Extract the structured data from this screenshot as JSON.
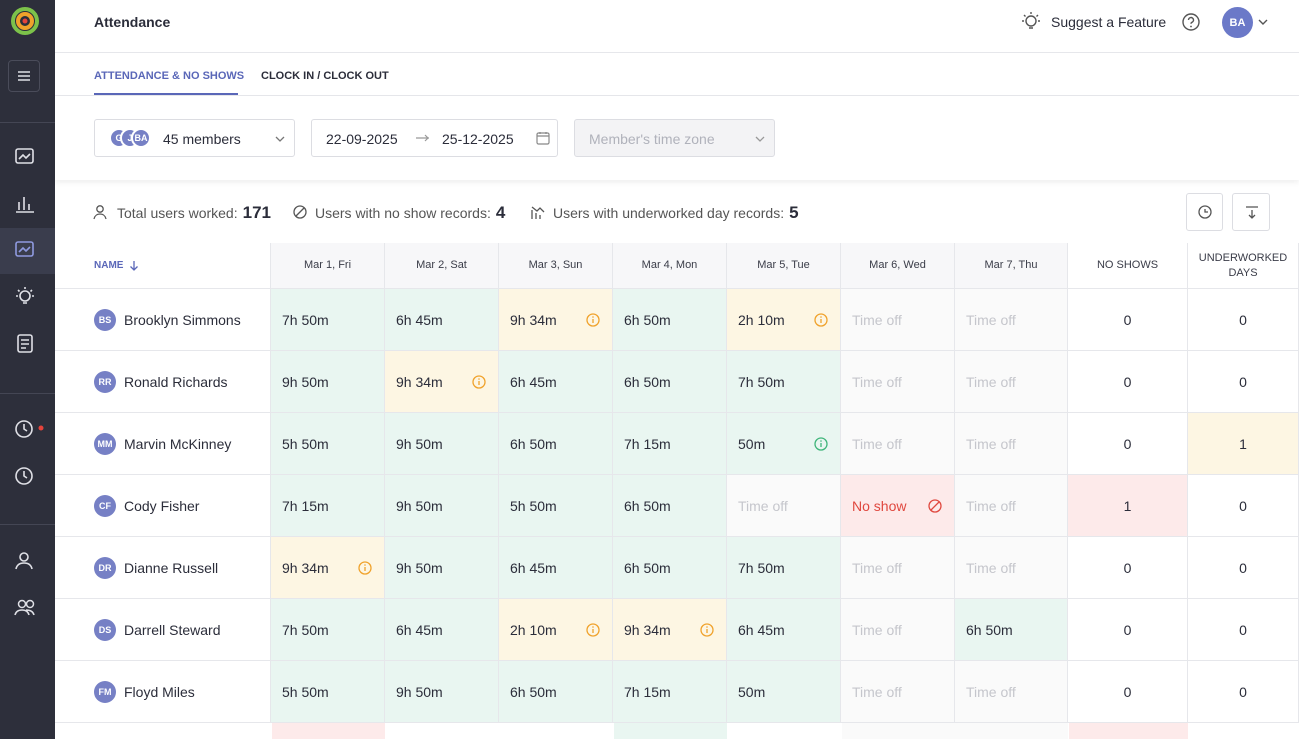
{
  "header": {
    "title": "Attendance",
    "suggest": "Suggest a Feature",
    "user_initials": "BA"
  },
  "tabs": [
    "ATTENDANCE & NO SHOWS",
    "CLOCK IN / CLOCK OUT"
  ],
  "filters": {
    "member_avatars": [
      "G",
      "J",
      "BA"
    ],
    "members": "45 members",
    "date_start": "22-09-2025",
    "date_end": "25-12-2025",
    "timezone_placeholder": "Member's time zone"
  },
  "stats": [
    {
      "label": "Total users worked:",
      "value": 171
    },
    {
      "label": "Users with no show records:",
      "value": 4
    },
    {
      "label": "Users with underworked day records:",
      "value": 5
    }
  ],
  "table": {
    "columns": [
      "NAME",
      "Mar 1, Fri",
      "Mar 2, Sat",
      "Mar 3, Sun",
      "Mar 4, Mon",
      "Mar 5, Tue",
      "Mar 6, Wed",
      "Mar 7, Thu",
      "NO SHOWS",
      "UNDERWORKED DAYS"
    ],
    "rows": [
      {
        "initials": "BS",
        "name": "Brooklyn Simmons",
        "cells": [
          {
            "text": "7h 50m",
            "state": "ok"
          },
          {
            "text": "6h 45m",
            "state": "ok"
          },
          {
            "text": "9h 34m",
            "state": "warn"
          },
          {
            "text": "6h 50m",
            "state": "ok"
          },
          {
            "text": "2h 10m",
            "state": "warn"
          },
          {
            "text": "Time off",
            "state": "off"
          },
          {
            "text": "Time off",
            "state": "off"
          }
        ],
        "no_shows": 0,
        "underworked": 0
      },
      {
        "initials": "RR",
        "name": "Ronald Richards",
        "cells": [
          {
            "text": "9h 50m",
            "state": "ok"
          },
          {
            "text": "9h 34m",
            "state": "warn"
          },
          {
            "text": "6h 45m",
            "state": "ok"
          },
          {
            "text": "6h 50m",
            "state": "ok"
          },
          {
            "text": "7h 50m",
            "state": "ok"
          },
          {
            "text": "Time off",
            "state": "off"
          },
          {
            "text": "Time off",
            "state": "off"
          }
        ],
        "no_shows": 0,
        "underworked": 0
      },
      {
        "initials": "MM",
        "name": "Marvin McKinney",
        "cells": [
          {
            "text": "5h 50m",
            "state": "ok"
          },
          {
            "text": "9h 50m",
            "state": "ok"
          },
          {
            "text": "6h 50m",
            "state": "ok"
          },
          {
            "text": "7h 15m",
            "state": "ok"
          },
          {
            "text": "50m",
            "state": "info"
          },
          {
            "text": "Time off",
            "state": "off"
          },
          {
            "text": "Time off",
            "state": "off"
          }
        ],
        "no_shows": 0,
        "underworked": 1
      },
      {
        "initials": "CF",
        "name": "Cody Fisher",
        "cells": [
          {
            "text": "7h 15m",
            "state": "ok"
          },
          {
            "text": "9h 50m",
            "state": "ok"
          },
          {
            "text": "5h 50m",
            "state": "ok"
          },
          {
            "text": "6h 50m",
            "state": "ok"
          },
          {
            "text": "Time off",
            "state": "off"
          },
          {
            "text": "No show",
            "state": "noshow"
          },
          {
            "text": "Time off",
            "state": "off"
          }
        ],
        "no_shows": 1,
        "underworked": 0
      },
      {
        "initials": "DR",
        "name": "Dianne Russell",
        "cells": [
          {
            "text": "9h 34m",
            "state": "warn"
          },
          {
            "text": "9h 50m",
            "state": "ok"
          },
          {
            "text": "6h 45m",
            "state": "ok"
          },
          {
            "text": "6h 50m",
            "state": "ok"
          },
          {
            "text": "7h 50m",
            "state": "ok"
          },
          {
            "text": "Time off",
            "state": "off"
          },
          {
            "text": "Time off",
            "state": "off"
          }
        ],
        "no_shows": 0,
        "underworked": 0
      },
      {
        "initials": "DS",
        "name": "Darrell Steward",
        "cells": [
          {
            "text": "7h 50m",
            "state": "ok"
          },
          {
            "text": "6h 45m",
            "state": "ok"
          },
          {
            "text": "2h 10m",
            "state": "warn"
          },
          {
            "text": "9h 34m",
            "state": "warn"
          },
          {
            "text": "6h 45m",
            "state": "ok"
          },
          {
            "text": "Time off",
            "state": "off"
          },
          {
            "text": "6h 50m",
            "state": "ok"
          }
        ],
        "no_shows": 0,
        "underworked": 0
      },
      {
        "initials": "FM",
        "name": "Floyd Miles",
        "cells": [
          {
            "text": "5h 50m",
            "state": "ok"
          },
          {
            "text": "9h 50m",
            "state": "ok"
          },
          {
            "text": "6h 50m",
            "state": "ok"
          },
          {
            "text": "7h 15m",
            "state": "ok"
          },
          {
            "text": "50m",
            "state": "ok"
          },
          {
            "text": "Time off",
            "state": "off"
          },
          {
            "text": "Time off",
            "state": "off"
          }
        ],
        "no_shows": 0,
        "underworked": 0
      }
    ]
  }
}
